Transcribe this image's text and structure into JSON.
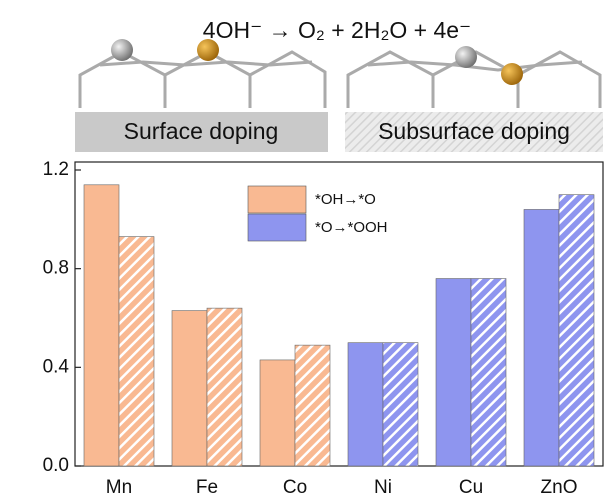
{
  "chart_data": {
    "type": "bar",
    "title": "4OH⁻ → O₂ + 2H₂O + 4e⁻",
    "panel_labels": [
      "Surface doping",
      "Subsurface doping"
    ],
    "categories": [
      "Mn",
      "Fe",
      "Co",
      "Ni",
      "Cu",
      "ZnO"
    ],
    "category_colors": [
      "#f9b992",
      "#f9b992",
      "#f9b992",
      "#8e95ef",
      "#8e95ef",
      "#8e95ef"
    ],
    "series": [
      {
        "name": "Surface doping",
        "pattern": "solid",
        "values": [
          1.14,
          0.63,
          0.43,
          0.5,
          0.76,
          1.04
        ]
      },
      {
        "name": "Subsurface doping",
        "pattern": "hatch",
        "values": [
          0.93,
          0.64,
          0.49,
          0.5,
          0.76,
          1.1
        ]
      }
    ],
    "legend": {
      "position": "top",
      "entries": [
        {
          "name": "*OH→*O",
          "color": "#f9b992"
        },
        {
          "name": "*O→*OOH",
          "color": "#8e95ef"
        }
      ]
    },
    "ylim": [
      0,
      1.2
    ],
    "yticks": [
      {
        "value": 0,
        "label": "0.0"
      },
      0.4,
      0.8,
      1.2
    ],
    "grid": false
  }
}
